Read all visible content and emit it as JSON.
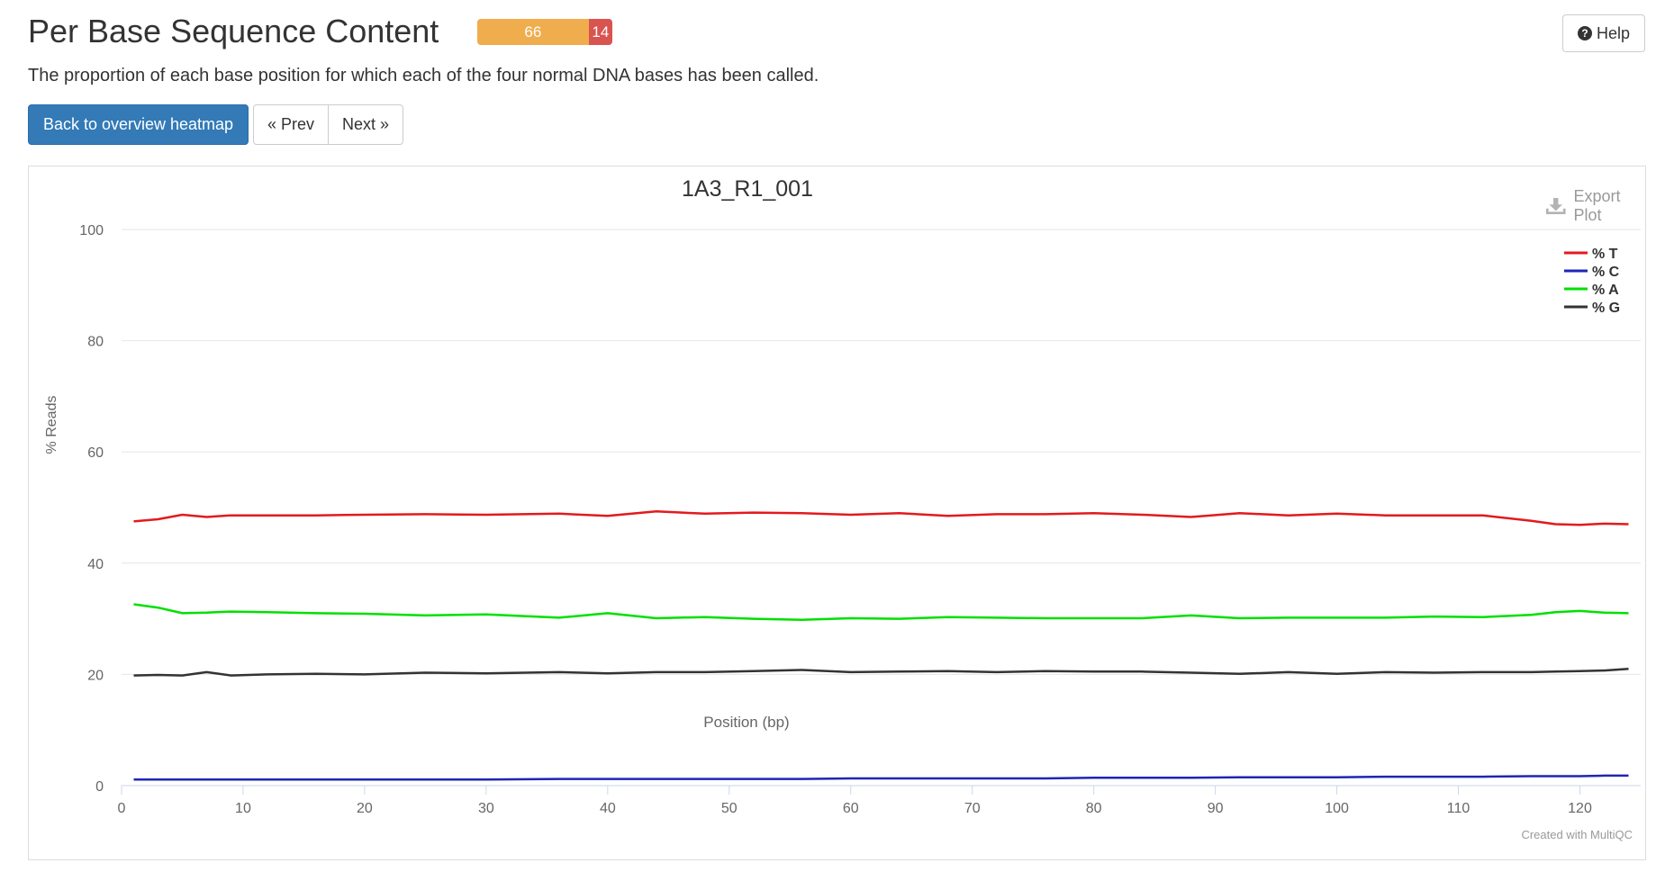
{
  "header": {
    "title": "Per Base Sequence Content",
    "status_segments": [
      {
        "label": "66",
        "color": "#f0ad4e",
        "fraction": 0.825
      },
      {
        "label": "14",
        "color": "#d9534f",
        "fraction": 0.175
      }
    ],
    "help_label": "Help",
    "help_icon": "question-circle-icon"
  },
  "description": "The proportion of each base position for which each of the four normal DNA bases has been called.",
  "nav": {
    "back_label": "Back to overview heatmap",
    "prev_label": "« Prev",
    "next_label": "Next »"
  },
  "plot": {
    "export_label": "Export Plot",
    "export_icon": "download-icon",
    "credits": "Created with MultiQC"
  },
  "chart_data": {
    "type": "line",
    "title": "1A3_R1_001",
    "xlabel": "Position (bp)",
    "ylabel": "% Reads",
    "xlim": [
      0,
      125
    ],
    "ylim": [
      0,
      100
    ],
    "xticks": [
      0,
      10,
      20,
      30,
      40,
      50,
      60,
      70,
      80,
      90,
      100,
      110,
      120
    ],
    "yticks": [
      0,
      20,
      40,
      60,
      80,
      100
    ],
    "grid": true,
    "legend_position": "top-right",
    "x": [
      1,
      3,
      5,
      7,
      9,
      12,
      16,
      20,
      25,
      30,
      36,
      40,
      44,
      48,
      52,
      56,
      60,
      64,
      68,
      72,
      76,
      80,
      84,
      88,
      92,
      96,
      100,
      104,
      108,
      112,
      116,
      118,
      120,
      122,
      124
    ],
    "series": [
      {
        "name": "% T",
        "color": "#e31a1c",
        "values": [
          47.5,
          47.9,
          48.7,
          48.3,
          48.6,
          48.6,
          48.6,
          48.7,
          48.8,
          48.7,
          48.9,
          48.5,
          49.3,
          48.9,
          49.1,
          49.0,
          48.7,
          49.0,
          48.5,
          48.8,
          48.8,
          49.0,
          48.7,
          48.3,
          49.0,
          48.6,
          48.9,
          48.6,
          48.6,
          48.6,
          47.6,
          47.0,
          46.9,
          47.1,
          47.0
        ]
      },
      {
        "name": "% C",
        "color": "#1f25b4",
        "values": [
          1.1,
          1.1,
          1.1,
          1.1,
          1.1,
          1.1,
          1.1,
          1.1,
          1.1,
          1.1,
          1.2,
          1.2,
          1.2,
          1.2,
          1.2,
          1.2,
          1.3,
          1.3,
          1.3,
          1.3,
          1.3,
          1.4,
          1.4,
          1.4,
          1.5,
          1.5,
          1.5,
          1.6,
          1.6,
          1.6,
          1.7,
          1.7,
          1.7,
          1.8,
          1.8
        ]
      },
      {
        "name": "% A",
        "color": "#00e000",
        "values": [
          32.6,
          32.0,
          31.0,
          31.1,
          31.3,
          31.2,
          31.0,
          30.9,
          30.6,
          30.8,
          30.2,
          31.0,
          30.1,
          30.3,
          30.0,
          29.8,
          30.1,
          30.0,
          30.3,
          30.2,
          30.1,
          30.1,
          30.1,
          30.6,
          30.1,
          30.2,
          30.2,
          30.2,
          30.4,
          30.3,
          30.7,
          31.2,
          31.4,
          31.1,
          31.0
        ]
      },
      {
        "name": "% G",
        "color": "#333333",
        "values": [
          19.8,
          19.9,
          19.8,
          20.4,
          19.8,
          20.0,
          20.1,
          20.0,
          20.3,
          20.2,
          20.4,
          20.2,
          20.4,
          20.4,
          20.6,
          20.8,
          20.4,
          20.5,
          20.6,
          20.4,
          20.6,
          20.5,
          20.5,
          20.3,
          20.1,
          20.4,
          20.1,
          20.4,
          20.3,
          20.4,
          20.4,
          20.5,
          20.6,
          20.7,
          21.0
        ]
      }
    ]
  }
}
